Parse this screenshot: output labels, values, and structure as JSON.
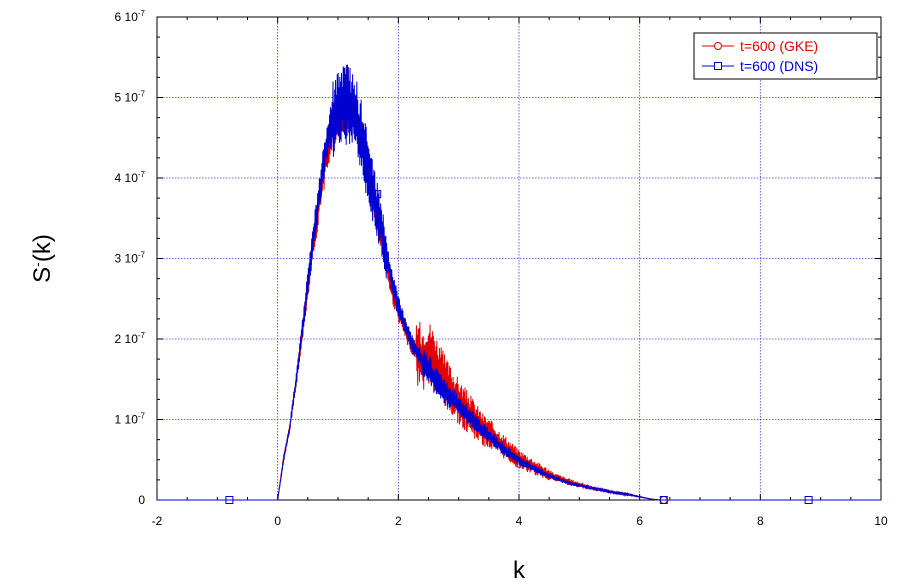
{
  "chart_data": {
    "type": "line",
    "xlabel": "k",
    "ylabel": "S",
    "ylabel_sup": "-",
    "ylabel_arg": "(k)",
    "xlim": [
      -2,
      10
    ],
    "ylim": [
      0,
      6e-07
    ],
    "grid": true,
    "legend_position": "top-right",
    "x_ticks": [
      -2,
      0,
      2,
      4,
      6,
      8,
      10
    ],
    "x_tick_labels": [
      "-2",
      "0",
      "2",
      "4",
      "6",
      "8",
      "10"
    ],
    "y_ticks": [
      0,
      1e-07,
      2e-07,
      3e-07,
      4e-07,
      5e-07,
      6e-07
    ],
    "y_tick_labels": [
      {
        "mant": "0",
        "exp": ""
      },
      {
        "mant": "1 10",
        "exp": "-7"
      },
      {
        "mant": "2 10",
        "exp": "-7"
      },
      {
        "mant": "3 10",
        "exp": "-7"
      },
      {
        "mant": "4 10",
        "exp": "-7"
      },
      {
        "mant": "5 10",
        "exp": "-7"
      },
      {
        "mant": "6 10",
        "exp": "-7"
      }
    ],
    "series": [
      {
        "name": "t=600 (GKE)",
        "color": "#e00000",
        "marker": "circle",
        "x": [
          0,
          0.1,
          0.2,
          0.3,
          0.4,
          0.5,
          0.6,
          0.7,
          0.8,
          0.9,
          1.0,
          1.1,
          1.2,
          1.3,
          1.4,
          1.5,
          1.6,
          1.7,
          1.8,
          1.9,
          2.0,
          2.1,
          2.2,
          2.3,
          2.4,
          2.5,
          2.6,
          2.7,
          2.8,
          2.9,
          3.0,
          3.2,
          3.4,
          3.6,
          3.8,
          4.0,
          4.2,
          4.4,
          4.6,
          4.8,
          5.0,
          5.2,
          5.4,
          5.6,
          5.8,
          6.0,
          6.2,
          6.35
        ],
        "y": [
          0,
          5.5e-08,
          9e-08,
          1.45e-07,
          2.05e-07,
          2.65e-07,
          3.25e-07,
          3.75e-07,
          4.25e-07,
          4.6e-07,
          4.8e-07,
          4.85e-07,
          4.85e-07,
          4.75e-07,
          4.45e-07,
          4.05e-07,
          3.65e-07,
          3.35e-07,
          2.95e-07,
          2.6e-07,
          2.35e-07,
          2.15e-07,
          1.95e-07,
          1.85e-07,
          1.75e-07,
          1.82e-07,
          1.72e-07,
          1.55e-07,
          1.42e-07,
          1.32e-07,
          1.22e-07,
          1.05e-07,
          8.8e-08,
          7.6e-08,
          6.3e-08,
          5.1e-08,
          4.3e-08,
          3.5e-08,
          2.8e-08,
          2.3e-08,
          1.9e-08,
          1.5e-08,
          1.2e-08,
          9e-09,
          7e-09,
          4e-09,
          1e-09,
          0
        ],
        "marker_x": [
          4.0,
          6.4
        ],
        "marker_y": [
          4.5e-08,
          0
        ]
      },
      {
        "name": "t=600 (DNS)",
        "color": "#0000d0",
        "marker": "square",
        "x": [
          0,
          0.1,
          0.2,
          0.3,
          0.4,
          0.5,
          0.6,
          0.7,
          0.8,
          0.9,
          1.0,
          1.1,
          1.2,
          1.3,
          1.4,
          1.5,
          1.6,
          1.7,
          1.8,
          1.9,
          2.0,
          2.1,
          2.2,
          2.3,
          2.4,
          2.5,
          2.6,
          2.7,
          2.8,
          2.9,
          3.0,
          3.2,
          3.4,
          3.6,
          3.8,
          4.0,
          4.2,
          4.4,
          4.6,
          4.8,
          5.0,
          5.2,
          5.4,
          5.6,
          5.8,
          6.0,
          6.2,
          6.35
        ],
        "y": [
          0,
          5e-08,
          9e-08,
          1.45e-07,
          2.05e-07,
          2.7e-07,
          3.3e-07,
          3.85e-07,
          4.35e-07,
          4.7e-07,
          4.85e-07,
          4.9e-07,
          4.9e-07,
          4.75e-07,
          4.45e-07,
          4.1e-07,
          3.75e-07,
          3.45e-07,
          3.05e-07,
          2.7e-07,
          2.4e-07,
          2.2e-07,
          2e-07,
          1.85e-07,
          1.72e-07,
          1.62e-07,
          1.5e-07,
          1.42e-07,
          1.33e-07,
          1.25e-07,
          1.17e-07,
          1.02e-07,
          8.6e-08,
          7.3e-08,
          6e-08,
          4.9e-08,
          4.1e-08,
          3.3e-08,
          2.7e-08,
          2.2e-08,
          1.8e-08,
          1.5e-08,
          1.2e-08,
          9e-09,
          7e-09,
          4e-09,
          1e-09,
          0
        ],
        "marker_x": [
          -0.8,
          1.65,
          6.4,
          8.8
        ],
        "marker_y": [
          0,
          3.8e-07,
          0,
          0
        ]
      }
    ]
  },
  "colors": {
    "grid": "#3a3aff",
    "axis": "#000000",
    "legend_border": "#000000"
  }
}
